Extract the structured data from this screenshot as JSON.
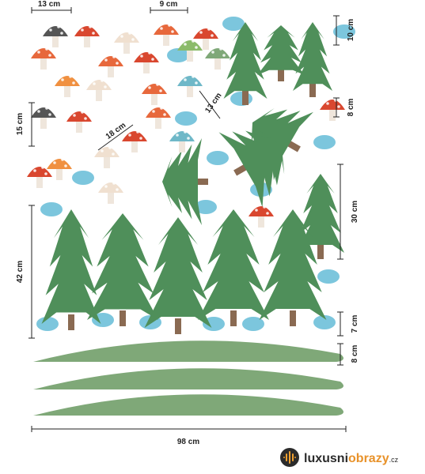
{
  "dimensions": [
    {
      "label": "13 cm"
    },
    {
      "label": "9 cm"
    },
    {
      "label": "10 cm"
    },
    {
      "label": "8 cm"
    },
    {
      "label": "15 cm"
    },
    {
      "label": "18 cm"
    },
    {
      "label": "13 cm"
    },
    {
      "label": "30 cm"
    },
    {
      "label": "42 cm"
    },
    {
      "label": "7 cm"
    },
    {
      "label": "8 cm"
    },
    {
      "label": "98 cm"
    }
  ],
  "logo": {
    "part1": "luxusni",
    "part2": "obrazy",
    "suffix": ".cz"
  }
}
